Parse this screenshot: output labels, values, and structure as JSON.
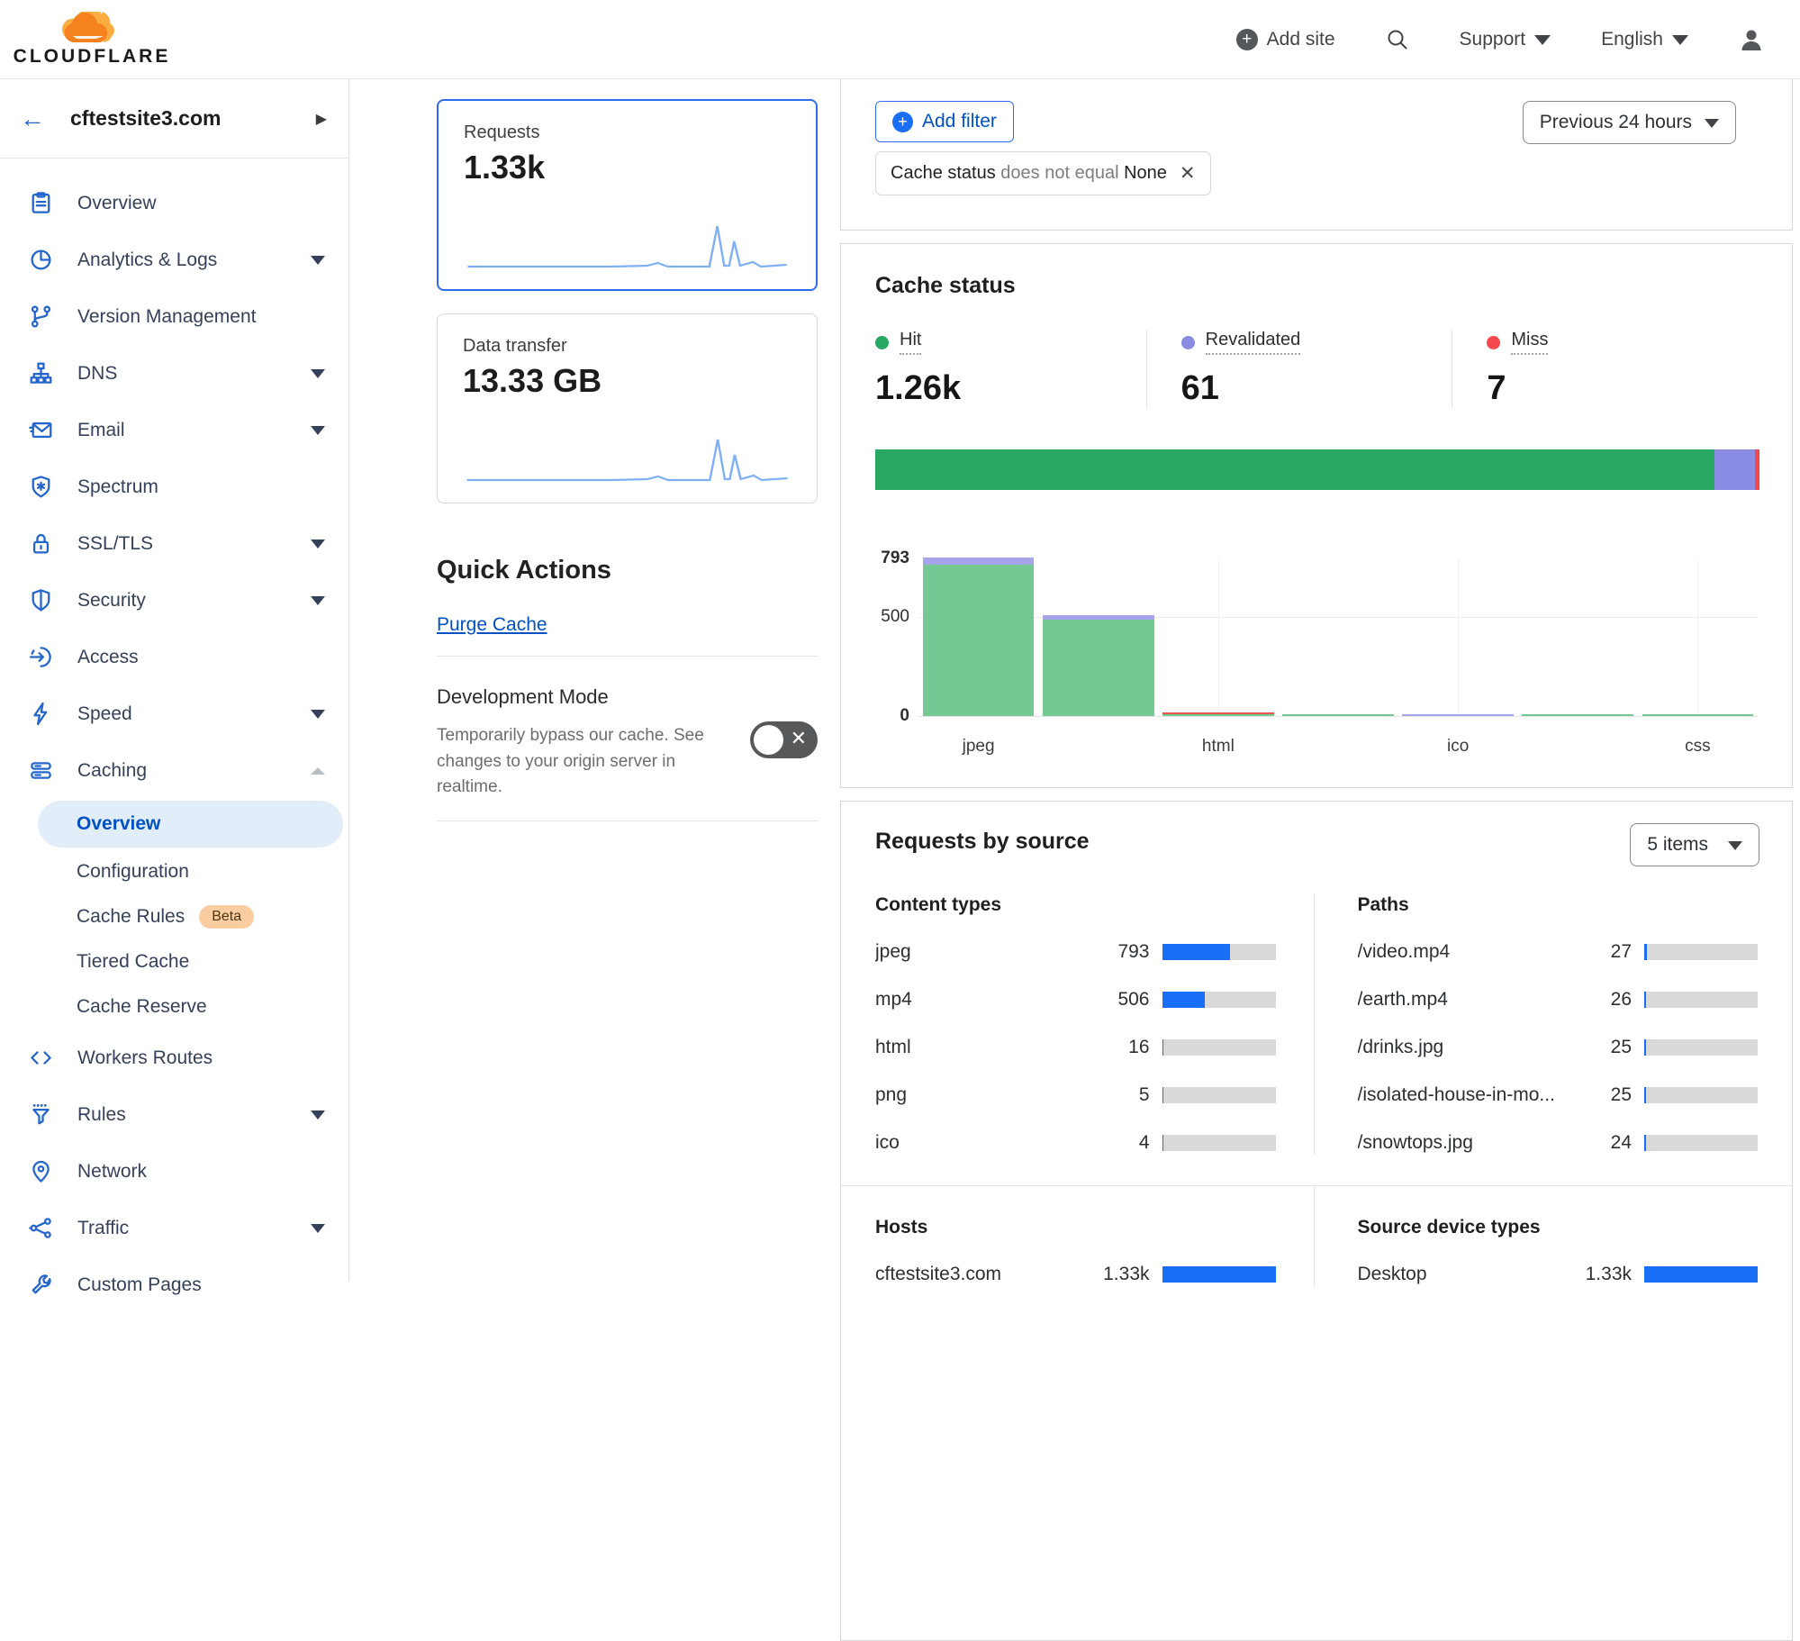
{
  "colors": {
    "accent_blue": "#0051c3",
    "bar_blue": "#1a6ef5",
    "hit_green": "#28a863",
    "revalidated_purple": "#8a8be2",
    "miss_red": "#f5484e",
    "chart_hit": "#74c892",
    "chart_revalidated": "#a6a4ea",
    "chart_miss": "#e2574b",
    "logo_orange": "#f6821f",
    "logo_light_orange": "#fbad41"
  },
  "header": {
    "logo_text": "CLOUDFLARE",
    "add_site_label": "Add site",
    "support_label": "Support",
    "language_label": "English"
  },
  "sidebar": {
    "site_name": "cftestsite3.com",
    "items": [
      {
        "label": "Overview",
        "icon": "clipboard-icon"
      },
      {
        "label": "Analytics & Logs",
        "icon": "pie-chart-icon",
        "caret": "down"
      },
      {
        "label": "Version Management",
        "icon": "branch-icon"
      },
      {
        "label": "DNS",
        "icon": "dns-icon",
        "caret": "down"
      },
      {
        "label": "Email",
        "icon": "email-icon",
        "caret": "down"
      },
      {
        "label": "Spectrum",
        "icon": "spectrum-icon"
      },
      {
        "label": "SSL/TLS",
        "icon": "lock-icon",
        "caret": "down"
      },
      {
        "label": "Security",
        "icon": "shield-icon",
        "caret": "down"
      },
      {
        "label": "Access",
        "icon": "access-icon"
      },
      {
        "label": "Speed",
        "icon": "bolt-icon",
        "caret": "down"
      },
      {
        "label": "Caching",
        "icon": "server-icon",
        "caret": "up",
        "children": [
          {
            "label": "Overview",
            "active": true
          },
          {
            "label": "Configuration"
          },
          {
            "label": "Cache Rules",
            "badge": "Beta"
          },
          {
            "label": "Tiered Cache"
          },
          {
            "label": "Cache Reserve"
          }
        ]
      },
      {
        "label": "Workers Routes",
        "icon": "code-icon"
      },
      {
        "label": "Rules",
        "icon": "funnel-icon",
        "caret": "down"
      },
      {
        "label": "Network",
        "icon": "pin-icon"
      },
      {
        "label": "Traffic",
        "icon": "share-icon",
        "caret": "down"
      },
      {
        "label": "Custom Pages",
        "icon": "wrench-icon"
      }
    ]
  },
  "summary_cards": [
    {
      "label": "Requests",
      "value": "1.33k",
      "selected": true
    },
    {
      "label": "Data transfer",
      "value": "13.33 GB",
      "selected": false
    }
  ],
  "quick_actions": {
    "title": "Quick Actions",
    "purge_cache_label": "Purge Cache",
    "dev_mode_title": "Development Mode",
    "dev_mode_description": "Temporarily bypass our cache. See changes to your origin server in realtime.",
    "dev_mode_state": "off"
  },
  "filters": {
    "add_filter_label": "Add filter",
    "chip_field": "Cache status",
    "chip_operator": "does not equal",
    "chip_value": "None",
    "time_range": "Previous 24 hours"
  },
  "cache_status": {
    "title": "Cache status",
    "stats": [
      {
        "label": "Hit",
        "value": "1.26k",
        "color_key": "hit_green"
      },
      {
        "label": "Revalidated",
        "value": "61",
        "color_key": "revalidated_purple"
      },
      {
        "label": "Miss",
        "value": "7",
        "color_key": "miss_red"
      }
    ],
    "stacked_bar": [
      {
        "name": "Hit",
        "pct": 94.9,
        "color_key": "hit_green"
      },
      {
        "name": "Revalidated",
        "pct": 4.6,
        "color_key": "revalidated_purple"
      },
      {
        "name": "Miss",
        "pct": 0.5,
        "color_key": "miss_red"
      }
    ]
  },
  "chart_data": {
    "type": "bar",
    "title": "Cache status by content type",
    "ylim": [
      0,
      793
    ],
    "y_ticks": [
      0,
      500,
      793
    ],
    "gridlines_h": [
      500
    ],
    "x_tick_labels": [
      "jpeg",
      "html",
      "ico",
      "css"
    ],
    "tick_slots": [
      0,
      2,
      4,
      6
    ],
    "gridline_slots": [
      2,
      4,
      6
    ],
    "bars": [
      {
        "label": "jpeg",
        "total": 793,
        "segments": [
          {
            "name": "hit",
            "value": 758
          },
          {
            "name": "revalidated",
            "value": 35
          }
        ]
      },
      {
        "label": "mp4",
        "total": 506,
        "segments": [
          {
            "name": "hit",
            "value": 480
          },
          {
            "name": "revalidated",
            "value": 26
          }
        ]
      },
      {
        "label": "html",
        "total": 16,
        "segments": [
          {
            "name": "hit",
            "value": 9
          },
          {
            "name": "miss",
            "value": 7
          }
        ]
      },
      {
        "label": "png",
        "total": 5,
        "segments": [
          {
            "name": "hit",
            "value": 5
          }
        ]
      },
      {
        "label": "ico",
        "total": 4,
        "segments": [
          {
            "name": "revalidated",
            "value": 4
          }
        ]
      },
      {
        "label": "",
        "total": 2,
        "segments": [
          {
            "name": "hit",
            "value": 2
          }
        ]
      },
      {
        "label": "css",
        "total": 1,
        "segments": [
          {
            "name": "hit",
            "value": 1
          }
        ]
      }
    ],
    "legend_position": "none",
    "grid": true
  },
  "requests_by_source": {
    "title": "Requests by source",
    "items_dropdown": "5 items",
    "total_requests": 1330,
    "columns": [
      {
        "title": "Content types",
        "rows": [
          {
            "label": "jpeg",
            "value": "793",
            "num": 793
          },
          {
            "label": "mp4",
            "value": "506",
            "num": 506
          },
          {
            "label": "html",
            "value": "16",
            "num": 16
          },
          {
            "label": "png",
            "value": "5",
            "num": 5
          },
          {
            "label": "ico",
            "value": "4",
            "num": 4
          }
        ]
      },
      {
        "title": "Paths",
        "rows": [
          {
            "label": "/video.mp4",
            "value": "27",
            "num": 27
          },
          {
            "label": "/earth.mp4",
            "value": "26",
            "num": 26
          },
          {
            "label": "/drinks.jpg",
            "value": "25",
            "num": 25
          },
          {
            "label": "/isolated-house-in-mo...",
            "value": "25",
            "num": 25
          },
          {
            "label": "/snowtops.jpg",
            "value": "24",
            "num": 24
          }
        ]
      }
    ],
    "bottom_columns": [
      {
        "title": "Hosts",
        "rows": [
          {
            "label": "cftestsite3.com",
            "value": "1.33k",
            "num": 1330
          }
        ]
      },
      {
        "title": "Source device types",
        "rows": [
          {
            "label": "Desktop",
            "value": "1.33k",
            "num": 1330
          }
        ]
      }
    ]
  }
}
